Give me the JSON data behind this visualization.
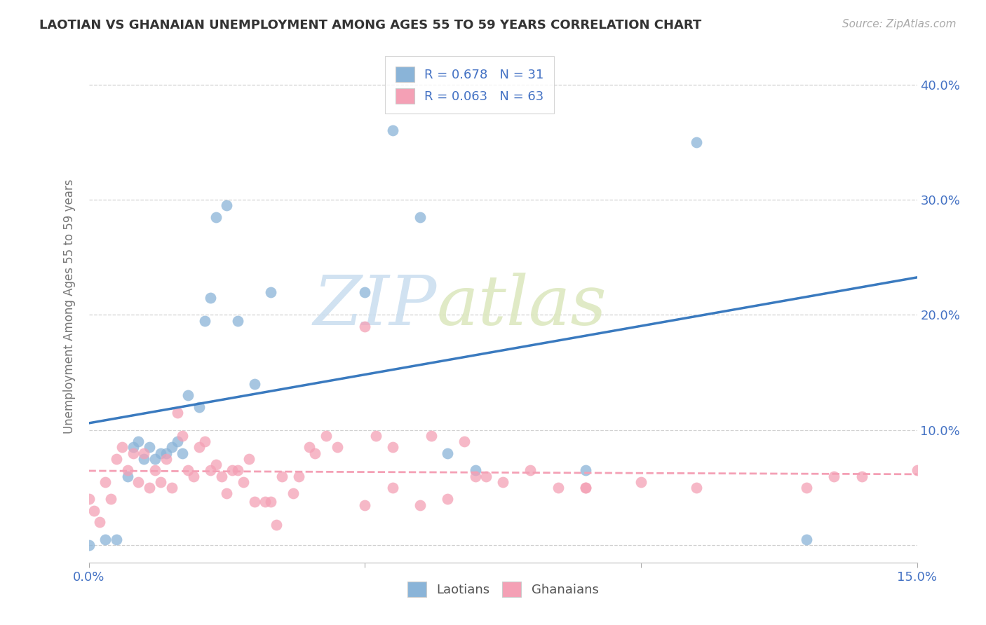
{
  "title": "LAOTIAN VS GHANAIAN UNEMPLOYMENT AMONG AGES 55 TO 59 YEARS CORRELATION CHART",
  "source": "Source: ZipAtlas.com",
  "ylabel": "Unemployment Among Ages 55 to 59 years",
  "xlim": [
    0.0,
    0.15
  ],
  "ylim": [
    -0.015,
    0.43
  ],
  "laotian_color": "#8ab4d8",
  "ghanaian_color": "#f4a0b5",
  "laotian_R": 0.678,
  "laotian_N": 31,
  "ghanaian_R": 0.063,
  "ghanaian_N": 63,
  "laotian_line_color": "#3a7abf",
  "ghanaian_line_color": "#f4a0b5",
  "watermark_zip": "ZIP",
  "watermark_atlas": "atlas",
  "background_color": "#ffffff",
  "grid_color": "#cccccc",
  "laotian_x": [
    0.0,
    0.003,
    0.005,
    0.007,
    0.008,
    0.009,
    0.01,
    0.011,
    0.012,
    0.013,
    0.014,
    0.015,
    0.016,
    0.017,
    0.018,
    0.02,
    0.021,
    0.022,
    0.023,
    0.025,
    0.027,
    0.03,
    0.033,
    0.05,
    0.055,
    0.06,
    0.065,
    0.07,
    0.09,
    0.11,
    0.13
  ],
  "laotian_y": [
    0.0,
    0.005,
    0.005,
    0.06,
    0.085,
    0.09,
    0.075,
    0.085,
    0.075,
    0.08,
    0.08,
    0.085,
    0.09,
    0.08,
    0.13,
    0.12,
    0.195,
    0.215,
    0.285,
    0.295,
    0.195,
    0.14,
    0.22,
    0.22,
    0.36,
    0.285,
    0.08,
    0.065,
    0.065,
    0.35,
    0.005
  ],
  "ghanaian_x": [
    0.0,
    0.001,
    0.002,
    0.003,
    0.004,
    0.005,
    0.006,
    0.007,
    0.008,
    0.009,
    0.01,
    0.011,
    0.012,
    0.013,
    0.014,
    0.015,
    0.016,
    0.017,
    0.018,
    0.019,
    0.02,
    0.021,
    0.022,
    0.023,
    0.024,
    0.025,
    0.026,
    0.027,
    0.028,
    0.029,
    0.03,
    0.032,
    0.033,
    0.034,
    0.035,
    0.037,
    0.038,
    0.04,
    0.041,
    0.043,
    0.045,
    0.05,
    0.055,
    0.06,
    0.065,
    0.07,
    0.09,
    0.1,
    0.11,
    0.13,
    0.135,
    0.14,
    0.15,
    0.05,
    0.052,
    0.055,
    0.062,
    0.068,
    0.072,
    0.075,
    0.08,
    0.085,
    0.09
  ],
  "ghanaian_y": [
    0.04,
    0.03,
    0.02,
    0.055,
    0.04,
    0.075,
    0.085,
    0.065,
    0.08,
    0.055,
    0.08,
    0.05,
    0.065,
    0.055,
    0.075,
    0.05,
    0.115,
    0.095,
    0.065,
    0.06,
    0.085,
    0.09,
    0.065,
    0.07,
    0.06,
    0.045,
    0.065,
    0.065,
    0.055,
    0.075,
    0.038,
    0.038,
    0.038,
    0.018,
    0.06,
    0.045,
    0.06,
    0.085,
    0.08,
    0.095,
    0.085,
    0.035,
    0.05,
    0.035,
    0.04,
    0.06,
    0.05,
    0.055,
    0.05,
    0.05,
    0.06,
    0.06,
    0.065,
    0.19,
    0.095,
    0.085,
    0.095,
    0.09,
    0.06,
    0.055,
    0.065,
    0.05,
    0.05
  ]
}
